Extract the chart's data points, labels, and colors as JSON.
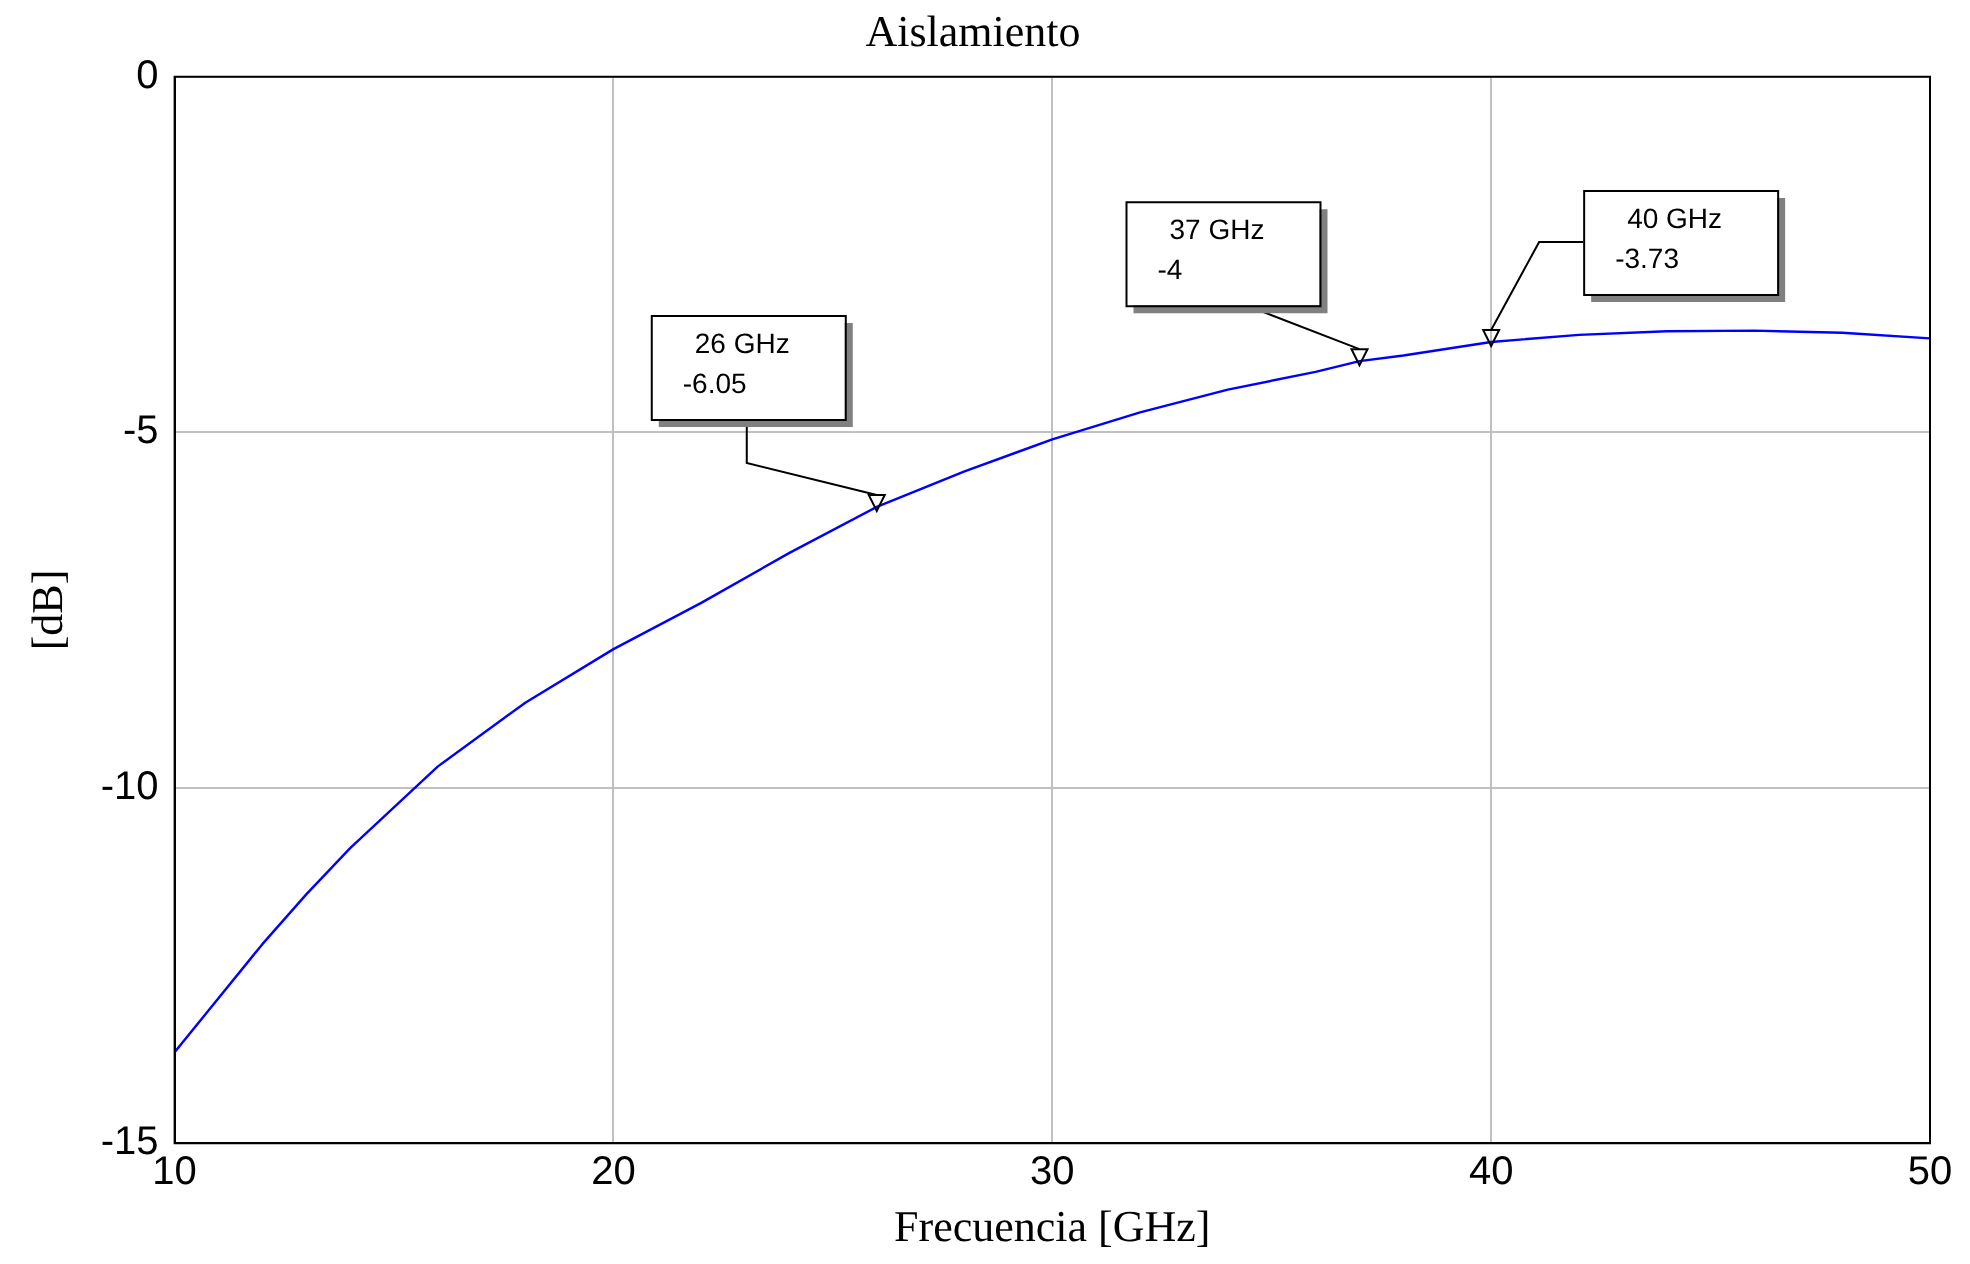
{
  "chart_data": {
    "type": "line",
    "title": "Aislamiento",
    "xlabel": "Frecuencia [GHz]",
    "ylabel": "[dB]",
    "x": [
      10,
      12,
      13,
      14,
      16,
      18,
      20,
      22,
      24,
      26,
      28,
      30,
      32,
      34,
      36,
      37,
      38,
      40,
      42,
      44,
      46,
      48,
      50
    ],
    "series": [
      {
        "color": "#0000ff",
        "values": [
          -13.72,
          -12.2,
          -11.5,
          -10.85,
          -9.7,
          -8.8,
          -8.05,
          -7.4,
          -6.7,
          -6.05,
          -5.55,
          -5.1,
          -4.72,
          -4.4,
          -4.15,
          -4.0,
          -3.92,
          -3.73,
          -3.63,
          -3.58,
          -3.57,
          -3.6,
          -3.68
        ]
      }
    ],
    "xlim": [
      10,
      50
    ],
    "xticks": [
      10,
      20,
      30,
      40,
      50
    ],
    "ylim": [
      -15,
      0
    ],
    "yticks": [
      -15,
      -10,
      -5,
      0
    ],
    "grid": true,
    "legend": false,
    "marker": "none",
    "line_style": "solid",
    "annotations": [
      {
        "text": "26 GHz\n-6.05",
        "x": 26,
        "y": -6.05
      },
      {
        "text": "37 GHz\n-4",
        "x": 37,
        "y": -4
      },
      {
        "text": "40 GHz\n-3.73",
        "x": 40,
        "y": -3.73
      }
    ]
  }
}
